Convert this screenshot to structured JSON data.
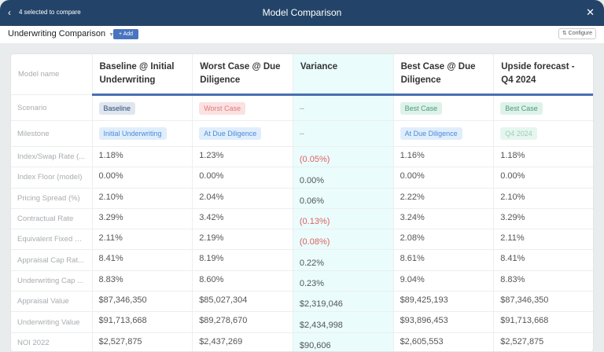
{
  "header": {
    "back_icon": "chevron-left-icon",
    "selection": "4 selected to compare",
    "title": "Model Comparison",
    "close_icon": "close-icon"
  },
  "toolbar": {
    "comparison": "Underwriting Comparison",
    "add_label": "+ Add",
    "configure_label": "Configure",
    "configure_icon": "sliders-icon"
  },
  "table": {
    "model_label": "Model name",
    "columns": [
      "Baseline @ Initial Underwriting",
      "Worst Case @ Due Diligence",
      "Variance",
      "Best Case @ Due Diligence",
      "Upside forecast - Q4 2024"
    ],
    "scenario_label": "Scenario",
    "scenarios": [
      "Baseline",
      "Worst Case",
      "--",
      "Best Case",
      "Best Case"
    ],
    "milestone_label": "Milestone",
    "milestones": [
      "Initial Underwriting",
      "At Due Diligence",
      "--",
      "At Due Diligence",
      "Q4 2024"
    ],
    "rows": [
      {
        "label": "Index/Swap Rate (...",
        "values": [
          "1.18%",
          "1.23%",
          "(0.05%)",
          "1.16%",
          "1.18%"
        ]
      },
      {
        "label": "Index Floor (model)",
        "values": [
          "0.00%",
          "0.00%",
          "0.00%",
          "0.00%",
          "0.00%"
        ]
      },
      {
        "label": "Pricing Spread (%)",
        "values": [
          "2.10%",
          "2.04%",
          "0.06%",
          "2.22%",
          "2.10%"
        ]
      },
      {
        "label": "Contractual Rate",
        "values": [
          "3.29%",
          "3.42%",
          "(0.13%)",
          "3.24%",
          "3.29%"
        ]
      },
      {
        "label": "Equivalent Fixed R...",
        "values": [
          "2.11%",
          "2.19%",
          "(0.08%)",
          "2.08%",
          "2.11%"
        ]
      },
      {
        "label": "Appraisal Cap Rat...",
        "values": [
          "8.41%",
          "8.19%",
          "0.22%",
          "8.61%",
          "8.41%"
        ]
      },
      {
        "label": "Underwriting Cap ...",
        "values": [
          "8.83%",
          "8.60%",
          "0.23%",
          "9.04%",
          "8.83%"
        ]
      },
      {
        "label": "Appraisal Value",
        "values": [
          "$87,346,350",
          "$85,027,304",
          "$2,319,046",
          "$89,425,193",
          "$87,346,350"
        ]
      },
      {
        "label": "Underwriting Value",
        "values": [
          "$91,713,668",
          "$89,278,670",
          "$2,434,998",
          "$93,896,453",
          "$91,713,668"
        ]
      },
      {
        "label": "NOI 2022",
        "values": [
          "$2,527,875",
          "$2,437,269",
          "$90,606",
          "$2,605,553",
          "$2,527,875"
        ]
      }
    ]
  },
  "colors": {
    "header_bg": "#234468",
    "accent": "#4a74c0",
    "negative": "#e06060",
    "variance_bg": "#eafcfc"
  }
}
